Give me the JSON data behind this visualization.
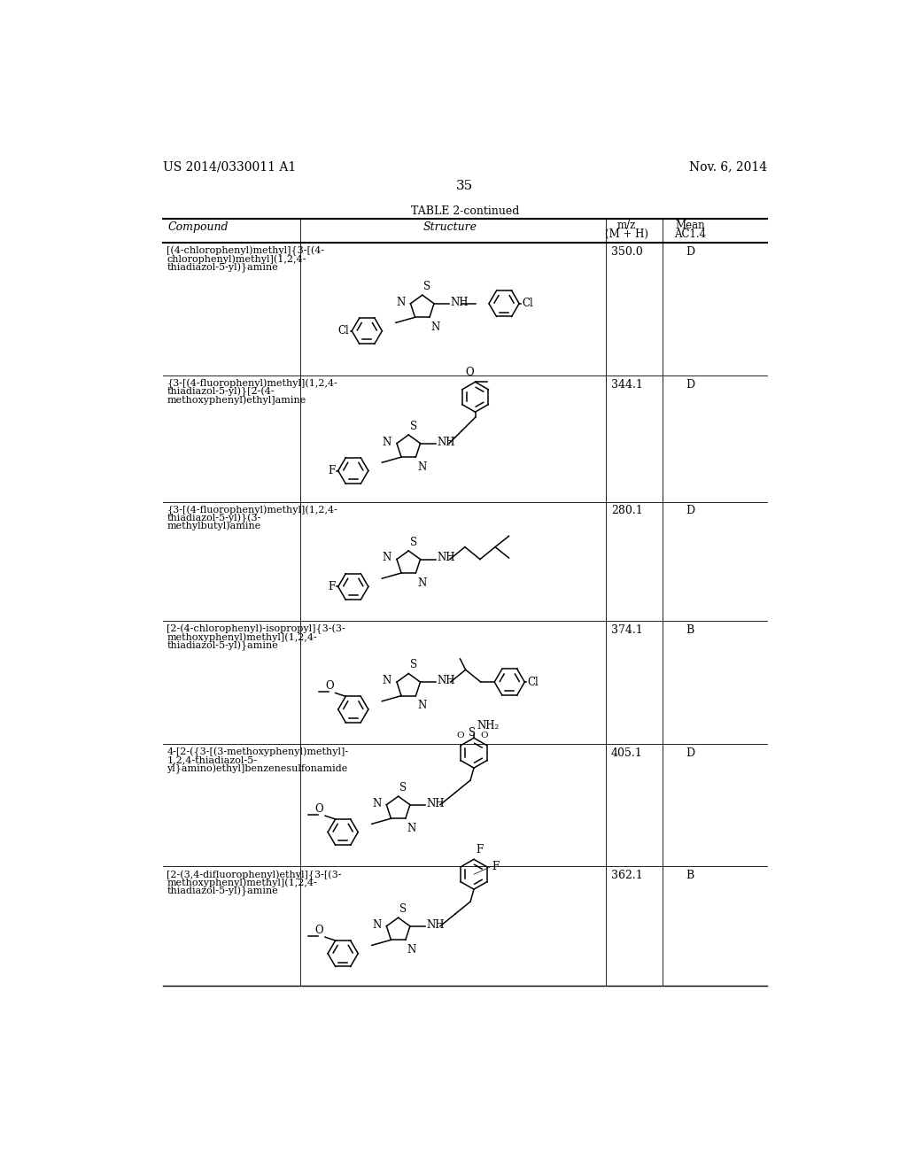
{
  "page_number": "35",
  "patent_left": "US 2014/0330011 A1",
  "patent_right": "Nov. 6, 2014",
  "table_title": "TABLE 2-continued",
  "background_color": "#ffffff",
  "rows": [
    {
      "compound_lines": [
        "[(4-chlorophenyl)methyl]{3-[(4-",
        "chlorophenyl)methyl](1,2,4-",
        "thiadiazol-5-yl)}amine"
      ],
      "mz": "350.0",
      "ac": "D"
    },
    {
      "compound_lines": [
        "{3-[(4-fluorophenyl)methyl](1,2,4-",
        "thiadiazol-5-yl)}[2-(4-",
        "methoxyphenyl)ethyl]amine"
      ],
      "mz": "344.1",
      "ac": "D"
    },
    {
      "compound_lines": [
        "{3-[(4-fluorophenyl)methyl](1,2,4-",
        "thiadiazol-5-yl)}(3-",
        "methylbutyl)amine"
      ],
      "mz": "280.1",
      "ac": "D"
    },
    {
      "compound_lines": [
        "[2-(4-chlorophenyl)-isopropyl]{3-(3-",
        "methoxyphenyl)methyl](1,2,4-",
        "thiadiazol-5-yl)}amine"
      ],
      "mz": "374.1",
      "ac": "B"
    },
    {
      "compound_lines": [
        "4-[2-({3-[(3-methoxyphenyl)methyl]-",
        "1,2,4-thiadiazol-5-",
        "yl}amino)ethyl]benzenesulfonamide"
      ],
      "mz": "405.1",
      "ac": "D"
    },
    {
      "compound_lines": [
        "[2-(3,4-difluorophenyl)ethyl]{3-[(3-",
        "methoxyphenyl)methyl](1,2,4-",
        "thiadiazol-5-yl)}amine"
      ],
      "mz": "362.1",
      "ac": "B"
    }
  ]
}
